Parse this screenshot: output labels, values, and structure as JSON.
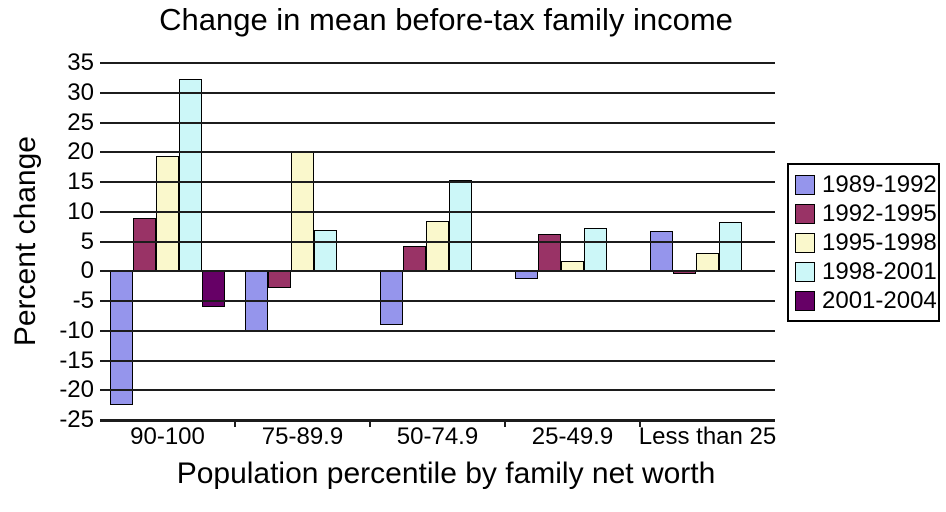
{
  "chart_data": {
    "type": "bar",
    "title": "Change in mean before-tax family income",
    "xlabel": "Population percentile by family net worth",
    "ylabel": "Percent change",
    "categories": [
      "90-100",
      "75-89.9",
      "50-74.9",
      "25-49.9",
      "Less than 25"
    ],
    "series": [
      {
        "name": "1989-1992",
        "color": "#9595EC",
        "values": [
          -22.5,
          -10.3,
          -9.0,
          -1.4,
          6.7
        ]
      },
      {
        "name": "1992-1995",
        "color": "#993366",
        "values": [
          8.9,
          -2.8,
          4.3,
          6.2,
          -0.5
        ]
      },
      {
        "name": "1995-1998",
        "color": "#FAF8CC",
        "values": [
          19.3,
          20.2,
          8.5,
          1.8,
          3.0
        ]
      },
      {
        "name": "1998-2001",
        "color": "#CCF7F8",
        "values": [
          32.3,
          6.9,
          15.3,
          7.2,
          8.3
        ]
      },
      {
        "name": "2001-2004",
        "color": "#660066",
        "values": [
          -6.1,
          0,
          0,
          0,
          0
        ]
      }
    ],
    "ylim": [
      -25,
      35
    ],
    "ytick_step": 5,
    "yticks": [
      35,
      30,
      25,
      20,
      15,
      10,
      5,
      0,
      -5,
      -10,
      -15,
      -20,
      -25
    ],
    "grid": true,
    "legend_position": "right",
    "background": "#FFFFFF",
    "gridline_color": "#1C1C1C",
    "bar_border_color": "#000000"
  }
}
